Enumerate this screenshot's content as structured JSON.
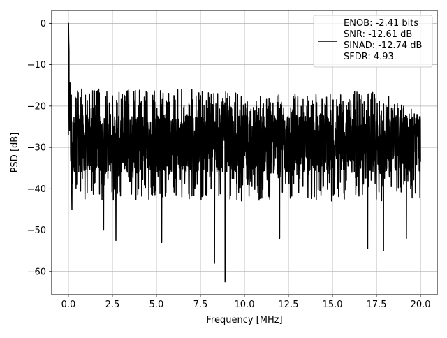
{
  "chart_data": {
    "type": "line",
    "title": "",
    "xlabel": "Frequency [MHz]",
    "ylabel": "PSD [dB]",
    "xlim": [
      -0.95,
      20.95
    ],
    "ylim": [
      -65.6,
      3.1
    ],
    "xticks": [
      0.0,
      2.5,
      5.0,
      7.5,
      10.0,
      12.5,
      15.0,
      17.5,
      20.0
    ],
    "xtick_labels": [
      "0.0",
      "2.5",
      "5.0",
      "7.5",
      "10.0",
      "12.5",
      "15.0",
      "17.5",
      "20.0"
    ],
    "yticks": [
      0,
      -10,
      -20,
      -30,
      -40,
      -50,
      -60
    ],
    "ytick_labels": [
      "0",
      "−10",
      "−20",
      "−30",
      "−40",
      "−50",
      "−60"
    ],
    "grid": true,
    "legend_position": "top-right",
    "series": [
      {
        "name": "ENOB: -2.41 bits\nSNR: -12.61 dB\nSINAD: -12.74 dB\nSFDR: 4.93",
        "legend_lines": [
          "ENOB: -2.41 bits",
          "SNR: -12.61 dB",
          "SINAD: -12.74 dB",
          "SFDR: 4.93"
        ],
        "color": "#000000",
        "peak": {
          "x": 0.0,
          "y": 0.0
        },
        "noise_floor_mean": -29,
        "upper_envelope": {
          "x": [
            0.2,
            2.5,
            5.0,
            7.5,
            10.0,
            12.5,
            15.0,
            17.5,
            20.0
          ],
          "y": [
            -15,
            -16,
            -16,
            -16,
            -17,
            -17,
            -17,
            -16,
            -22
          ]
        },
        "notable_minima": [
          {
            "x": 0.2,
            "y": -45
          },
          {
            "x": 2.0,
            "y": -50
          },
          {
            "x": 2.7,
            "y": -52.5
          },
          {
            "x": 5.3,
            "y": -53
          },
          {
            "x": 8.3,
            "y": -58
          },
          {
            "x": 8.9,
            "y": -62.5
          },
          {
            "x": 12.0,
            "y": -52
          },
          {
            "x": 17.0,
            "y": -54.5
          },
          {
            "x": 17.9,
            "y": -55
          },
          {
            "x": 19.2,
            "y": -52
          }
        ]
      }
    ]
  }
}
